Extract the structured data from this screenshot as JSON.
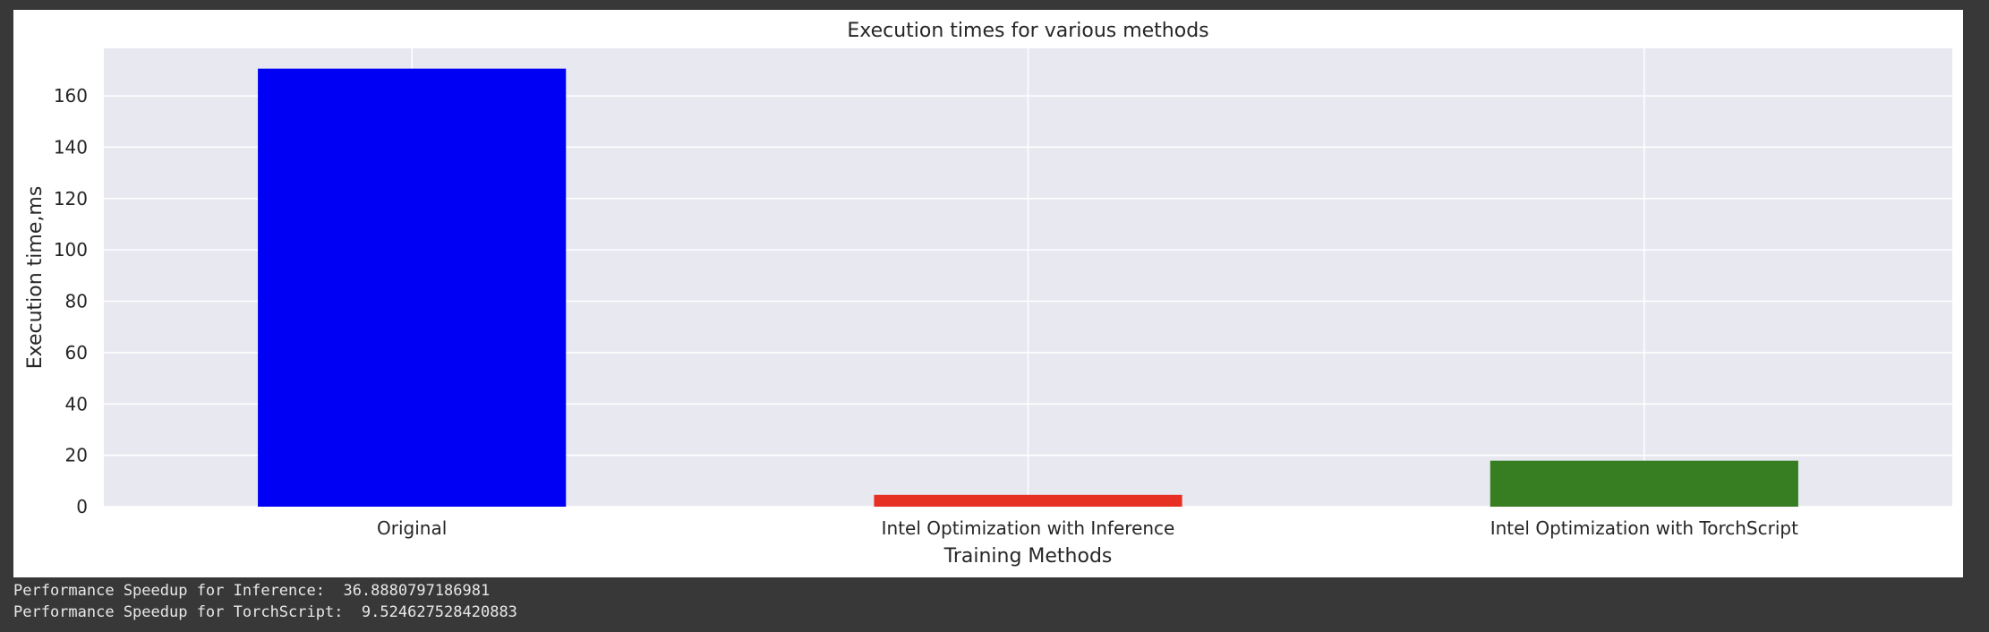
{
  "chart_data": {
    "type": "bar",
    "title": "Execution times for various methods",
    "xlabel": "Training Methods",
    "ylabel": "Execution time,ms",
    "categories": [
      "Original",
      "Intel Optimization with Inference",
      "Intel Optimization with TorchScript"
    ],
    "values": [
      170.6,
      4.6,
      17.9
    ],
    "colors": [
      "#0000f5",
      "#e53023",
      "#377e22"
    ],
    "ylim": [
      0,
      178.5
    ],
    "yticks": [
      0,
      20,
      40,
      60,
      80,
      100,
      120,
      140,
      160
    ],
    "grid": true,
    "style": {
      "plot_background": "#e8e9f0",
      "grid_color": "#ffffff",
      "text_color": "#262626"
    }
  },
  "output": {
    "lines": [
      "Performance Speedup for Inference:  36.8880797186981",
      "Performance Speedup for TorchScript:  9.524627528420883"
    ]
  }
}
